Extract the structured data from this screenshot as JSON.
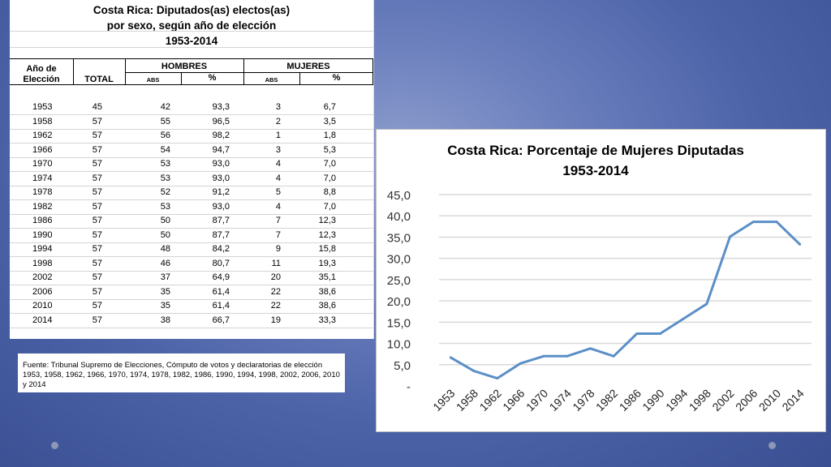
{
  "table": {
    "title_line1": "Costa Rica: Diputados(as) electos(as)",
    "title_line2": "por sexo, según año de elección",
    "title_line3": "1953-2014",
    "col_year_line1": "Año de",
    "col_year_line2": "Elección",
    "col_total": "TOTAL",
    "group_hombres": "HOMBRES",
    "group_mujeres": "MUJERES",
    "sub_abs": "ABS",
    "sub_pct": "%",
    "rows": [
      {
        "year": "1953",
        "total": "45",
        "h_abs": "42",
        "h_pct": "93,3",
        "m_abs": "3",
        "m_pct": "6,7"
      },
      {
        "year": "1958",
        "total": "57",
        "h_abs": "55",
        "h_pct": "96,5",
        "m_abs": "2",
        "m_pct": "3,5"
      },
      {
        "year": "1962",
        "total": "57",
        "h_abs": "56",
        "h_pct": "98,2",
        "m_abs": "1",
        "m_pct": "1,8"
      },
      {
        "year": "1966",
        "total": "57",
        "h_abs": "54",
        "h_pct": "94,7",
        "m_abs": "3",
        "m_pct": "5,3"
      },
      {
        "year": "1970",
        "total": "57",
        "h_abs": "53",
        "h_pct": "93,0",
        "m_abs": "4",
        "m_pct": "7,0"
      },
      {
        "year": "1974",
        "total": "57",
        "h_abs": "53",
        "h_pct": "93,0",
        "m_abs": "4",
        "m_pct": "7,0"
      },
      {
        "year": "1978",
        "total": "57",
        "h_abs": "52",
        "h_pct": "91,2",
        "m_abs": "5",
        "m_pct": "8,8"
      },
      {
        "year": "1982",
        "total": "57",
        "h_abs": "53",
        "h_pct": "93,0",
        "m_abs": "4",
        "m_pct": "7,0"
      },
      {
        "year": "1986",
        "total": "57",
        "h_abs": "50",
        "h_pct": "87,7",
        "m_abs": "7",
        "m_pct": "12,3"
      },
      {
        "year": "1990",
        "total": "57",
        "h_abs": "50",
        "h_pct": "87,7",
        "m_abs": "7",
        "m_pct": "12,3"
      },
      {
        "year": "1994",
        "total": "57",
        "h_abs": "48",
        "h_pct": "84,2",
        "m_abs": "9",
        "m_pct": "15,8"
      },
      {
        "year": "1998",
        "total": "57",
        "h_abs": "46",
        "h_pct": "80,7",
        "m_abs": "11",
        "m_pct": "19,3"
      },
      {
        "year": "2002",
        "total": "57",
        "h_abs": "37",
        "h_pct": "64,9",
        "m_abs": "20",
        "m_pct": "35,1"
      },
      {
        "year": "2006",
        "total": "57",
        "h_abs": "35",
        "h_pct": "61,4",
        "m_abs": "22",
        "m_pct": "38,6"
      },
      {
        "year": "2010",
        "total": "57",
        "h_abs": "35",
        "h_pct": "61,4",
        "m_abs": "22",
        "m_pct": "38,6"
      },
      {
        "year": "2014",
        "total": "57",
        "h_abs": "38",
        "h_pct": "66,7",
        "m_abs": "19",
        "m_pct": "33,3"
      }
    ]
  },
  "source": {
    "text": "Fuente: Tribunal Supremo de Elecciones, Cómputo de votos y declaratorias de elección 1953, 1958, 1962, 1966, 1970, 1974, 1978, 1982, 1986, 1990, 1994, 1998, 2002, 2006, 2010 y 2014"
  },
  "chart_data": {
    "type": "line",
    "title_line1": "Costa Rica: Porcentaje de Mujeres Diputadas",
    "title_line2": "1953-2014",
    "xlabel": "",
    "ylabel": "",
    "categories": [
      "1953",
      "1958",
      "1962",
      "1966",
      "1970",
      "1974",
      "1978",
      "1982",
      "1986",
      "1990",
      "1994",
      "1998",
      "2002",
      "2006",
      "2010",
      "2014"
    ],
    "values": [
      6.7,
      3.5,
      1.8,
      5.3,
      7.0,
      7.0,
      8.8,
      7.0,
      12.3,
      12.3,
      15.8,
      19.3,
      35.1,
      38.6,
      38.6,
      33.3
    ],
    "y_ticks": [
      "-",
      "5,0",
      "10,0",
      "15,0",
      "20,0",
      "25,0",
      "30,0",
      "35,0",
      "40,0",
      "45,0"
    ],
    "ylim": [
      0,
      45
    ],
    "grid": true,
    "legend": "none",
    "line_color": "#5b8fc7",
    "grid_color": "#d9d9d9"
  }
}
